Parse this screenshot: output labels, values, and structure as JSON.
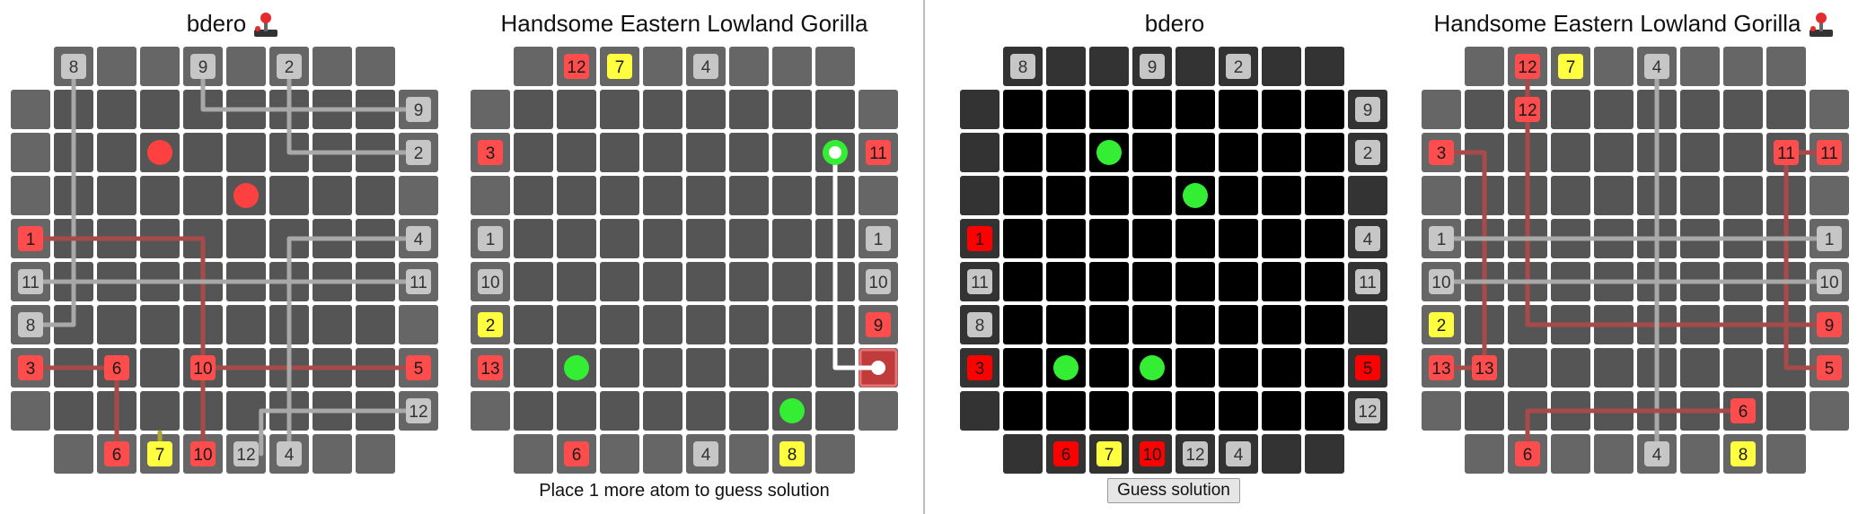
{
  "titles": [
    "bdero",
    "Handsome Eastern Lowland Gorilla",
    "bdero",
    "Handsome Eastern Lowland Gorilla"
  ],
  "status_message": "Place 1 more atom to guess solution",
  "guess_button": "Guess solution",
  "colors": {
    "cell": "#555555",
    "cell_dark": "#000000",
    "edge_cell": "#666666",
    "edge_cell_dark": "#333333",
    "badge_gray": "#c6c6c6",
    "badge_red": "#ff4c4c",
    "badge_red_dark": "#ff0000",
    "badge_yellow": "#ffff40",
    "atom_red": "#ff4040",
    "atom_green": "#33ee33",
    "path_gray": "#a8a8a8",
    "path_red": "#a84a4a",
    "path_yellow": "#a8a830",
    "path_white": "#ffffff"
  },
  "boards": [
    {
      "title_index": 0,
      "has_joystick": true,
      "theme": "gray",
      "edges": {
        "top": [
          {
            "c": 1,
            "label": "8",
            "color": "gray"
          },
          {
            "c": 4,
            "label": "9",
            "color": "gray"
          },
          {
            "c": 6,
            "label": "2",
            "color": "gray"
          }
        ],
        "right": [
          {
            "r": 1,
            "label": "9",
            "color": "gray"
          },
          {
            "r": 2,
            "label": "2",
            "color": "gray"
          },
          {
            "r": 4,
            "label": "4",
            "color": "gray"
          },
          {
            "r": 5,
            "label": "11",
            "color": "gray"
          },
          {
            "r": 7,
            "label": "5",
            "color": "red"
          },
          {
            "r": 8,
            "label": "12",
            "color": "gray"
          }
        ],
        "left": [
          {
            "r": 4,
            "label": "1",
            "color": "red"
          },
          {
            "r": 5,
            "label": "11",
            "color": "gray"
          },
          {
            "r": 6,
            "label": "8",
            "color": "gray"
          },
          {
            "r": 7,
            "label": "3",
            "color": "red"
          }
        ],
        "bottom": [
          {
            "c": 2,
            "label": "6",
            "color": "red"
          },
          {
            "c": 3,
            "label": "7",
            "color": "yellow"
          },
          {
            "c": 4,
            "label": "10",
            "color": "red"
          },
          {
            "c": 5,
            "label": "12",
            "color": "gray"
          },
          {
            "c": 6,
            "label": "4",
            "color": "gray"
          }
        ]
      },
      "inner_badges": [
        {
          "r": 7,
          "c": 2,
          "label": "6",
          "color": "red"
        },
        {
          "r": 7,
          "c": 4,
          "label": "10",
          "color": "red"
        }
      ],
      "atoms": [
        {
          "r": 2,
          "c": 3,
          "color": "red"
        },
        {
          "r": 3,
          "c": 5,
          "color": "red"
        }
      ],
      "paths": [
        {
          "color": "gray",
          "pts": [
            [
              0,
              1
            ],
            [
              6,
              1
            ],
            [
              6,
              0
            ]
          ]
        },
        {
          "color": "gray",
          "pts": [
            [
              0,
              4
            ],
            [
              1,
              4
            ],
            [
              1,
              9
            ]
          ]
        },
        {
          "color": "gray",
          "pts": [
            [
              0,
              6
            ],
            [
              2,
              6
            ],
            [
              2,
              9
            ]
          ]
        },
        {
          "color": "red",
          "pts": [
            [
              4,
              0
            ],
            [
              4,
              4
            ],
            [
              9,
              4
            ]
          ]
        },
        {
          "color": "gray",
          "pts": [
            [
              5,
              0
            ],
            [
              5,
              9
            ]
          ]
        },
        {
          "color": "red",
          "pts": [
            [
              7,
              0
            ],
            [
              7,
              2
            ],
            [
              9,
              2
            ]
          ]
        },
        {
          "color": "red",
          "pts": [
            [
              7,
              4
            ],
            [
              7,
              9
            ]
          ]
        },
        {
          "color": "gray",
          "pts": [
            [
              4,
              9
            ],
            [
              4,
              6
            ],
            [
              9,
              6
            ]
          ]
        },
        {
          "color": "gray",
          "pts": [
            [
              8,
              9
            ],
            [
              8,
              5.35
            ],
            [
              9,
              5.35
            ]
          ]
        },
        {
          "color": "yellow",
          "pts": [
            [
              8.5,
              3
            ],
            [
              9,
              3
            ]
          ]
        }
      ]
    },
    {
      "title_index": 1,
      "has_joystick": false,
      "theme": "gray",
      "edges": {
        "top": [
          {
            "c": 2,
            "label": "12",
            "color": "red"
          },
          {
            "c": 3,
            "label": "7",
            "color": "yellow"
          },
          {
            "c": 5,
            "label": "4",
            "color": "gray"
          }
        ],
        "right": [
          {
            "r": 2,
            "label": "11",
            "color": "red"
          },
          {
            "r": 4,
            "label": "1",
            "color": "gray"
          },
          {
            "r": 5,
            "label": "10",
            "color": "gray"
          },
          {
            "r": 6,
            "label": "9",
            "color": "red"
          }
        ],
        "left": [
          {
            "r": 2,
            "label": "3",
            "color": "red"
          },
          {
            "r": 4,
            "label": "1",
            "color": "gray"
          },
          {
            "r": 5,
            "label": "10",
            "color": "gray"
          },
          {
            "r": 6,
            "label": "2",
            "color": "yellow"
          },
          {
            "r": 7,
            "label": "13",
            "color": "red"
          }
        ],
        "bottom": [
          {
            "c": 2,
            "label": "6",
            "color": "red"
          },
          {
            "c": 5,
            "label": "4",
            "color": "gray"
          },
          {
            "c": 7,
            "label": "8",
            "color": "yellow"
          }
        ]
      },
      "inner_badges": [],
      "highlight_cells": [
        {
          "r": 7,
          "c": 9
        }
      ],
      "atoms": [
        {
          "r": 7,
          "c": 2,
          "color": "green"
        },
        {
          "r": 8,
          "c": 7,
          "color": "green"
        },
        {
          "r": 2,
          "c": 8,
          "color": "green",
          "ring": true
        }
      ],
      "paths": [
        {
          "color": "white",
          "pts": [
            [
              2,
              8
            ],
            [
              7,
              8
            ],
            [
              7,
              9
            ]
          ],
          "end_dot": [
            7,
            9
          ]
        }
      ]
    },
    {
      "title_index": 2,
      "has_joystick": false,
      "theme": "dark",
      "edges": {
        "top": [
          {
            "c": 1,
            "label": "8",
            "color": "gray"
          },
          {
            "c": 4,
            "label": "9",
            "color": "gray"
          },
          {
            "c": 6,
            "label": "2",
            "color": "gray"
          }
        ],
        "right": [
          {
            "r": 1,
            "label": "9",
            "color": "gray"
          },
          {
            "r": 2,
            "label": "2",
            "color": "gray"
          },
          {
            "r": 4,
            "label": "4",
            "color": "gray"
          },
          {
            "r": 5,
            "label": "11",
            "color": "gray"
          },
          {
            "r": 7,
            "label": "5",
            "color": "reddark"
          },
          {
            "r": 8,
            "label": "12",
            "color": "gray"
          }
        ],
        "left": [
          {
            "r": 4,
            "label": "1",
            "color": "reddark"
          },
          {
            "r": 5,
            "label": "11",
            "color": "gray"
          },
          {
            "r": 6,
            "label": "8",
            "color": "gray"
          },
          {
            "r": 7,
            "label": "3",
            "color": "reddark"
          }
        ],
        "bottom": [
          {
            "c": 2,
            "label": "6",
            "color": "reddark"
          },
          {
            "c": 3,
            "label": "7",
            "color": "yellow"
          },
          {
            "c": 4,
            "label": "10",
            "color": "reddark"
          },
          {
            "c": 5,
            "label": "12",
            "color": "gray"
          },
          {
            "c": 6,
            "label": "4",
            "color": "gray"
          }
        ]
      },
      "inner_badges": [],
      "atoms": [
        {
          "r": 2,
          "c": 3,
          "color": "green"
        },
        {
          "r": 3,
          "c": 5,
          "color": "green"
        },
        {
          "r": 7,
          "c": 2,
          "color": "green"
        },
        {
          "r": 7,
          "c": 4,
          "color": "green"
        }
      ],
      "paths": []
    },
    {
      "title_index": 3,
      "has_joystick": true,
      "theme": "gray",
      "edges": {
        "top": [
          {
            "c": 2,
            "label": "12",
            "color": "red"
          },
          {
            "c": 3,
            "label": "7",
            "color": "yellow"
          },
          {
            "c": 5,
            "label": "4",
            "color": "gray"
          }
        ],
        "right": [
          {
            "r": 2,
            "label": "11",
            "color": "red"
          },
          {
            "r": 4,
            "label": "1",
            "color": "gray"
          },
          {
            "r": 5,
            "label": "10",
            "color": "gray"
          },
          {
            "r": 6,
            "label": "9",
            "color": "red"
          },
          {
            "r": 7,
            "label": "5",
            "color": "red"
          }
        ],
        "left": [
          {
            "r": 2,
            "label": "3",
            "color": "red"
          },
          {
            "r": 4,
            "label": "1",
            "color": "gray"
          },
          {
            "r": 5,
            "label": "10",
            "color": "gray"
          },
          {
            "r": 6,
            "label": "2",
            "color": "yellow"
          },
          {
            "r": 7,
            "label": "13",
            "color": "red"
          }
        ],
        "bottom": [
          {
            "c": 2,
            "label": "6",
            "color": "red"
          },
          {
            "c": 5,
            "label": "4",
            "color": "gray"
          },
          {
            "c": 7,
            "label": "8",
            "color": "yellow"
          }
        ]
      },
      "inner_badges": [
        {
          "r": 1,
          "c": 2,
          "label": "12",
          "color": "red"
        },
        {
          "r": 2,
          "c": 8,
          "label": "11",
          "color": "red"
        },
        {
          "r": 7,
          "c": 1,
          "label": "13",
          "color": "red"
        },
        {
          "r": 8,
          "c": 7,
          "label": "6",
          "color": "red"
        }
      ],
      "atoms": [],
      "paths": [
        {
          "color": "red",
          "pts": [
            [
              0,
              2
            ],
            [
              6,
              2
            ],
            [
              6,
              9
            ]
          ]
        },
        {
          "color": "gray",
          "pts": [
            [
              0,
              5
            ],
            [
              9,
              5
            ]
          ]
        },
        {
          "color": "red",
          "pts": [
            [
              2,
              0
            ],
            [
              2,
              1
            ],
            [
              7,
              1
            ]
          ]
        },
        {
          "color": "red",
          "pts": [
            [
              2,
              9
            ],
            [
              2,
              8
            ],
            [
              7,
              8
            ],
            [
              7,
              9
            ]
          ]
        },
        {
          "color": "gray",
          "pts": [
            [
              4,
              0
            ],
            [
              4,
              9
            ]
          ]
        },
        {
          "color": "gray",
          "pts": [
            [
              5,
              0
            ],
            [
              5,
              9
            ]
          ]
        },
        {
          "color": "red",
          "pts": [
            [
              7,
              0
            ],
            [
              7,
              1
            ]
          ]
        },
        {
          "color": "red",
          "pts": [
            [
              9,
              2
            ],
            [
              8,
              2
            ],
            [
              8,
              7
            ]
          ]
        }
      ]
    }
  ]
}
